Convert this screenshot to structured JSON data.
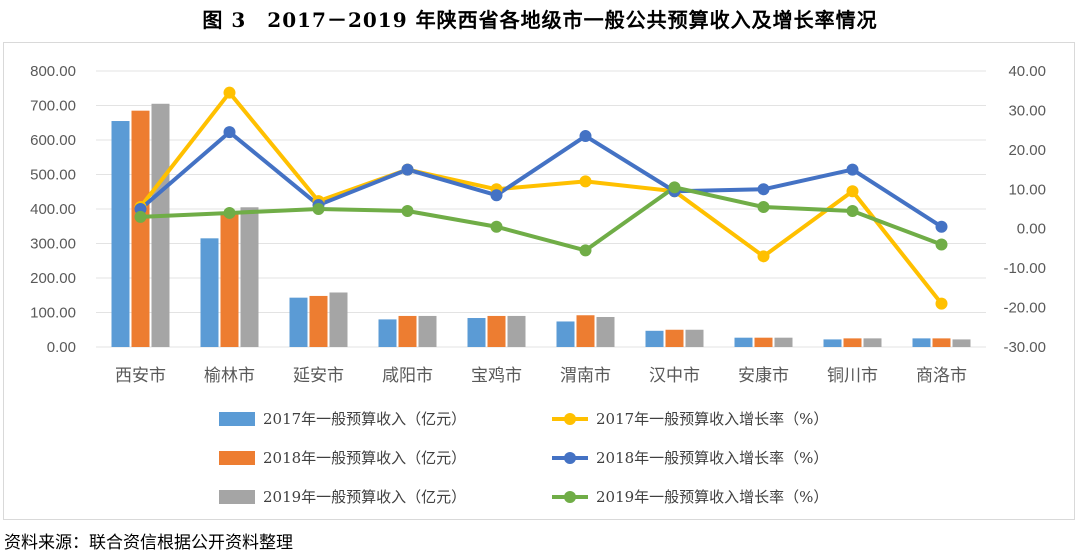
{
  "title": "图 3　2017－2019 年陕西省各地级市一般公共预算收入及增长率情况",
  "source": "资料来源：联合资信根据公开资料整理",
  "chart_data": {
    "type": "bar",
    "categories": [
      "西安市",
      "榆林市",
      "延安市",
      "咸阳市",
      "宝鸡市",
      "渭南市",
      "汉中市",
      "安康市",
      "铜川市",
      "商洛市"
    ],
    "left_axis": {
      "ylim": [
        0,
        800
      ],
      "ticks": [
        "0.00",
        "100.00",
        "200.00",
        "300.00",
        "400.00",
        "500.00",
        "600.00",
        "700.00",
        "800.00"
      ]
    },
    "right_axis": {
      "ylim": [
        -30,
        40
      ],
      "ticks": [
        "-30.00",
        "-20.00",
        "-10.00",
        "0.00",
        "10.00",
        "20.00",
        "30.00",
        "40.00"
      ]
    },
    "bar_series": [
      {
        "name": "2017年一般预算收入（亿元）",
        "color": "#5b9bd5",
        "values": [
          655,
          315,
          143,
          80,
          84,
          74,
          47,
          27,
          22,
          25
        ]
      },
      {
        "name": "2018年一般预算收入（亿元）",
        "color": "#ed7d31",
        "values": [
          685,
          390,
          148,
          90,
          90,
          92,
          50,
          27,
          25,
          25
        ]
      },
      {
        "name": "2019年一般预算收入（亿元）",
        "color": "#a5a5a5",
        "values": [
          705,
          405,
          158,
          90,
          90,
          87,
          50,
          27,
          25,
          22
        ]
      }
    ],
    "line_series": [
      {
        "name": "2017年一般预算收入增长率（%）",
        "color": "#ffc000",
        "values": [
          5.5,
          34.5,
          7.0,
          15.0,
          10.0,
          12.0,
          9.5,
          -7.0,
          9.5,
          -19.0
        ]
      },
      {
        "name": "2018年一般预算收入增长率（%）",
        "color": "#4472c4",
        "values": [
          5.0,
          24.5,
          6.0,
          15.0,
          8.5,
          23.5,
          9.5,
          10.0,
          15.0,
          0.5
        ]
      },
      {
        "name": "2019年一般预算收入增长率（%）",
        "color": "#70ad47",
        "values": [
          3.0,
          4.0,
          5.0,
          4.5,
          0.5,
          -5.5,
          10.5,
          5.5,
          4.5,
          -4.0
        ]
      }
    ],
    "legend_order": [
      0,
      3,
      1,
      4,
      2,
      5
    ]
  }
}
